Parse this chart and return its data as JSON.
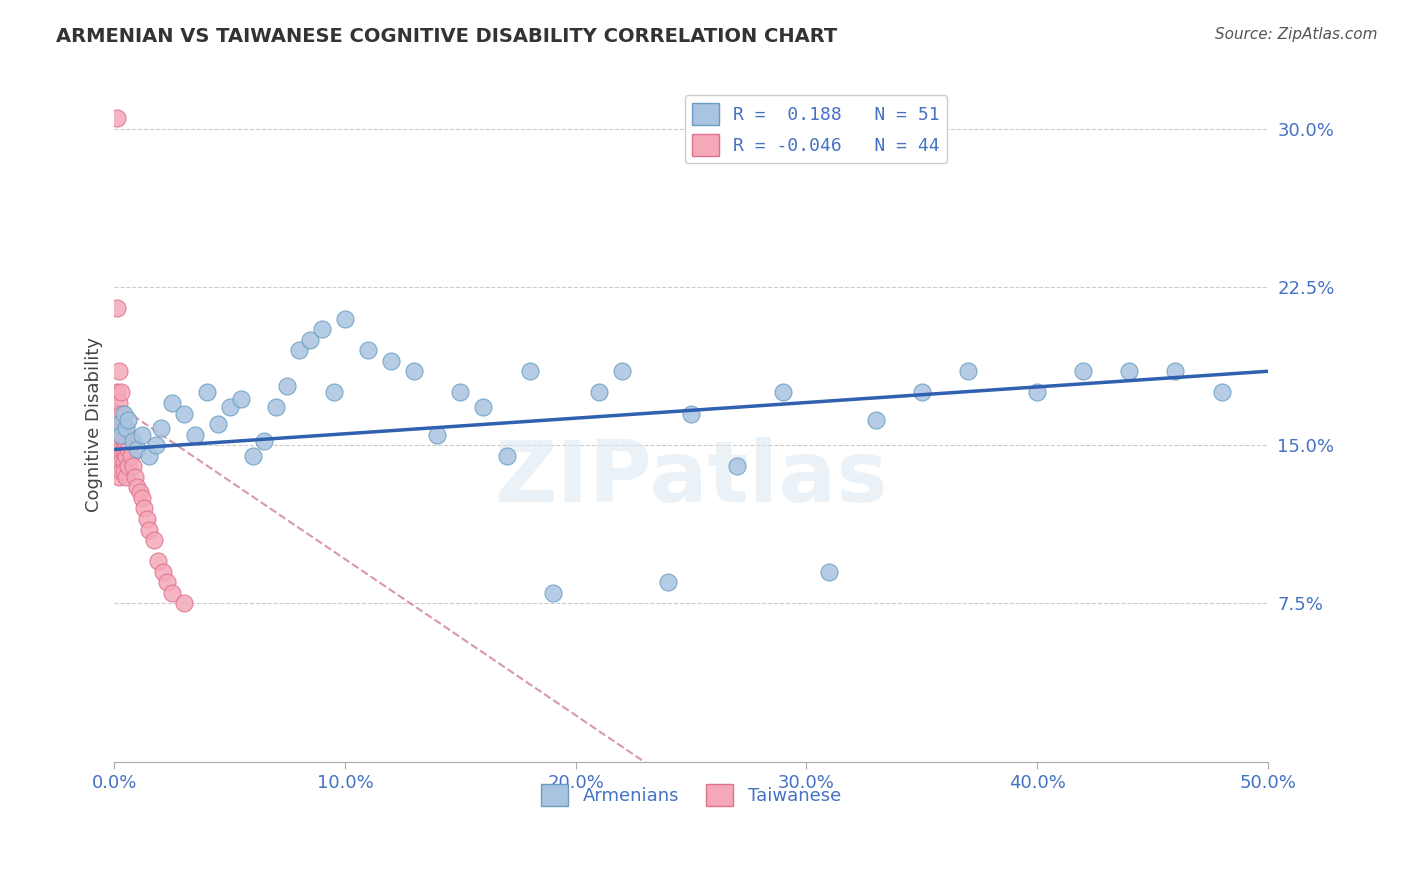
{
  "title": "ARMENIAN VS TAIWANESE COGNITIVE DISABILITY CORRELATION CHART",
  "source": "Source: ZipAtlas.com",
  "ylabel_label": "Cognitive Disability",
  "x_min": 0.0,
  "x_max": 0.5,
  "y_min": 0.0,
  "y_max": 0.32,
  "x_ticks": [
    0.0,
    0.1,
    0.2,
    0.3,
    0.4,
    0.5
  ],
  "x_tick_labels": [
    "0.0%",
    "10.0%",
    "20.0%",
    "30.0%",
    "40.0%",
    "50.0%"
  ],
  "y_ticks": [
    0.075,
    0.15,
    0.225,
    0.3
  ],
  "y_tick_labels": [
    "7.5%",
    "15.0%",
    "22.5%",
    "30.0%"
  ],
  "grid_color": "#cccccc",
  "background_color": "#ffffff",
  "armenian_color": "#a8c4e0",
  "armenian_edge_color": "#6a9ec0",
  "taiwanese_color": "#f4a8b8",
  "taiwanese_edge_color": "#e07090",
  "armenian_line_color": "#3060b0",
  "taiwanese_line_color": "#d08090",
  "R_armenian": 0.188,
  "N_armenian": 51,
  "R_taiwanese": -0.046,
  "N_taiwanese": 44,
  "legend_color": "#4472c4",
  "watermark": "ZIPatlas",
  "armenian_x": [
    0.002,
    0.003,
    0.004,
    0.005,
    0.006,
    0.008,
    0.01,
    0.012,
    0.015,
    0.018,
    0.02,
    0.025,
    0.03,
    0.035,
    0.04,
    0.045,
    0.05,
    0.055,
    0.06,
    0.065,
    0.07,
    0.075,
    0.08,
    0.085,
    0.09,
    0.095,
    0.1,
    0.11,
    0.12,
    0.13,
    0.14,
    0.15,
    0.16,
    0.17,
    0.18,
    0.19,
    0.21,
    0.22,
    0.24,
    0.25,
    0.27,
    0.29,
    0.31,
    0.33,
    0.35,
    0.37,
    0.4,
    0.42,
    0.44,
    0.46,
    0.48
  ],
  "armenian_y": [
    0.16,
    0.155,
    0.165,
    0.158,
    0.162,
    0.152,
    0.148,
    0.155,
    0.145,
    0.15,
    0.158,
    0.17,
    0.165,
    0.155,
    0.175,
    0.16,
    0.168,
    0.172,
    0.145,
    0.152,
    0.168,
    0.178,
    0.195,
    0.2,
    0.205,
    0.175,
    0.21,
    0.195,
    0.19,
    0.185,
    0.155,
    0.175,
    0.168,
    0.145,
    0.185,
    0.08,
    0.175,
    0.185,
    0.085,
    0.165,
    0.14,
    0.175,
    0.09,
    0.162,
    0.175,
    0.185,
    0.175,
    0.185,
    0.185,
    0.185,
    0.175
  ],
  "taiwanese_x": [
    0.001,
    0.001,
    0.001,
    0.001,
    0.001,
    0.002,
    0.002,
    0.002,
    0.002,
    0.002,
    0.002,
    0.003,
    0.003,
    0.003,
    0.003,
    0.003,
    0.003,
    0.003,
    0.004,
    0.004,
    0.004,
    0.004,
    0.004,
    0.005,
    0.005,
    0.005,
    0.005,
    0.006,
    0.006,
    0.007,
    0.008,
    0.009,
    0.01,
    0.011,
    0.012,
    0.013,
    0.014,
    0.015,
    0.017,
    0.019,
    0.021,
    0.023,
    0.025,
    0.03
  ],
  "taiwanese_y": [
    0.305,
    0.215,
    0.175,
    0.165,
    0.15,
    0.185,
    0.17,
    0.16,
    0.15,
    0.145,
    0.135,
    0.175,
    0.165,
    0.16,
    0.155,
    0.148,
    0.142,
    0.138,
    0.16,
    0.155,
    0.148,
    0.142,
    0.138,
    0.155,
    0.15,
    0.145,
    0.135,
    0.148,
    0.14,
    0.145,
    0.14,
    0.135,
    0.13,
    0.128,
    0.125,
    0.12,
    0.115,
    0.11,
    0.105,
    0.095,
    0.09,
    0.085,
    0.08,
    0.075
  ]
}
